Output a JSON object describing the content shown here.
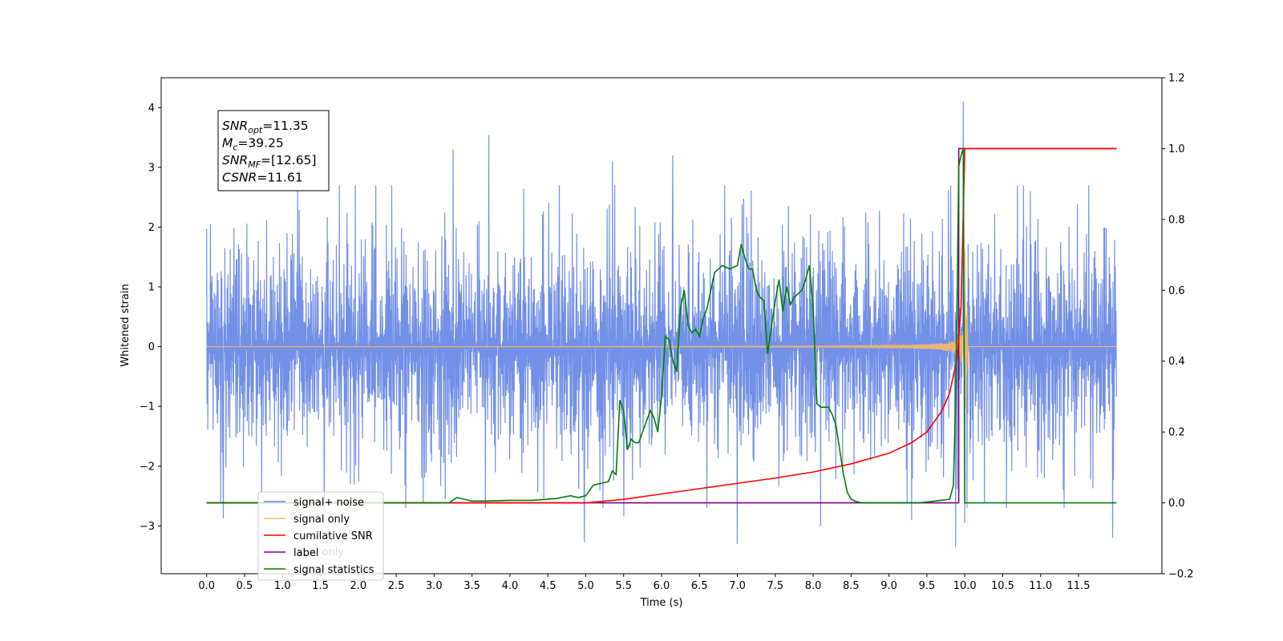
{
  "chart_data": {
    "type": "line",
    "title": "",
    "xlabel": "Time (s)",
    "ylabel_left": "Whitened strain",
    "ylabel_right": "",
    "xlim": [
      -0.6,
      12.6
    ],
    "ylim_left": [
      -3.8,
      4.5
    ],
    "ylim_right": [
      -0.2,
      1.2
    ],
    "x_ticks": [
      0.0,
      0.5,
      1.0,
      1.5,
      2.0,
      2.5,
      3.0,
      3.5,
      4.0,
      4.5,
      5.0,
      5.5,
      6.0,
      6.5,
      7.0,
      7.5,
      8.0,
      8.5,
      9.0,
      9.5,
      10.0,
      10.5,
      11.0,
      11.5
    ],
    "x_tick_labels": [
      "0.0",
      "0.5",
      "1.0",
      "1.5",
      "2.0",
      "2.5",
      "3.0",
      "3.5",
      "4.0",
      "4.5",
      "5.0",
      "5.5",
      "6.0",
      "6.5",
      "7.0",
      "7.5",
      "8.0",
      "8.5",
      "9.0",
      "9.5",
      "10.0",
      "10.5",
      "11.0",
      "11.5"
    ],
    "y_left_ticks": [
      -3,
      -2,
      -1,
      0,
      1,
      2,
      3,
      4
    ],
    "y_left_tick_labels": [
      "−3",
      "−2",
      "−1",
      "0",
      "1",
      "2",
      "3",
      "4"
    ],
    "y_right_ticks": [
      -0.2,
      0.0,
      0.2,
      0.4,
      0.6,
      0.8,
      1.0,
      1.2
    ],
    "y_right_tick_labels": [
      "−0.2",
      "0.0",
      "0.2",
      "0.4",
      "0.6",
      "0.8",
      "1.0",
      "1.2"
    ],
    "grid": false,
    "legend_position": "lower-left",
    "legend": [
      {
        "label": "signal+ noise",
        "color": "#6b8ae6"
      },
      {
        "label": "signal only",
        "color": "#ffbf60"
      },
      {
        "label": "cumilative SNR",
        "color": "#ff0000"
      },
      {
        "label": "label",
        "color": "#800080"
      },
      {
        "label": "signal statistics",
        "color": "#007f00"
      }
    ],
    "hidden_legend_text": "label only",
    "annotation": {
      "lines": [
        {
          "base": "SNR",
          "sub": "opt",
          "rest": "=11.35"
        },
        {
          "base": "M",
          "sub": "c",
          "rest": "=39.25"
        },
        {
          "base": "SNR",
          "sub": "MF",
          "rest": "=[12.65]"
        },
        {
          "base": "CSNR",
          "sub": "",
          "rest": "=11.61"
        }
      ]
    },
    "series": [
      {
        "name": "signal+ noise",
        "axis": "left",
        "color": "#6b8ae6",
        "description_amplitude": 1.0,
        "x_range": [
          0.0,
          12.0
        ],
        "peaks": [
          {
            "x": 0.0,
            "y": 1.97
          },
          {
            "x": 0.22,
            "y": -2.87
          },
          {
            "x": 1.2,
            "y": 2.65
          },
          {
            "x": 1.55,
            "y": -2.7
          },
          {
            "x": 3.25,
            "y": 3.3
          },
          {
            "x": 3.72,
            "y": 3.54
          },
          {
            "x": 4.98,
            "y": -3.27
          },
          {
            "x": 5.35,
            "y": 3.1
          },
          {
            "x": 5.5,
            "y": -2.84
          },
          {
            "x": 6.15,
            "y": 3.2
          },
          {
            "x": 7.0,
            "y": -3.3
          },
          {
            "x": 8.1,
            "y": -3.0
          },
          {
            "x": 9.3,
            "y": -2.9
          },
          {
            "x": 9.88,
            "y": -3.35
          },
          {
            "x": 9.98,
            "y": 4.1
          },
          {
            "x": 10.0,
            "y": -2.95
          },
          {
            "x": 11.95,
            "y": -3.2
          }
        ]
      },
      {
        "name": "signal only",
        "axis": "left",
        "color": "#ffbf60",
        "x_range": [
          0.0,
          12.0
        ],
        "merger_time": 10.0
      },
      {
        "name": "cumilative SNR",
        "axis": "right",
        "color": "#ff0000",
        "x": [
          5.0,
          5.5,
          6.0,
          6.5,
          7.0,
          7.5,
          8.0,
          8.5,
          9.0,
          9.3,
          9.5,
          9.7,
          9.8,
          9.9,
          9.95,
          10.0,
          10.05,
          12.0
        ],
        "values": [
          0.0,
          0.01,
          0.025,
          0.04,
          0.055,
          0.07,
          0.087,
          0.11,
          0.14,
          0.17,
          0.2,
          0.26,
          0.31,
          0.41,
          0.55,
          1.0,
          1.0,
          1.0
        ]
      },
      {
        "name": "label",
        "axis": "right",
        "color": "#800080",
        "x": [
          0.0,
          9.92,
          9.92,
          10.0,
          10.0,
          12.0
        ],
        "values": [
          0.0,
          0.0,
          1.0,
          1.0,
          1.0,
          1.0
        ]
      },
      {
        "name": "signal statistics",
        "axis": "right",
        "color": "#007f00",
        "x": [
          0.0,
          3.0,
          3.2,
          3.3,
          3.5,
          3.7,
          4.0,
          4.3,
          4.6,
          4.8,
          4.9,
          5.0,
          5.1,
          5.2,
          5.3,
          5.35,
          5.4,
          5.45,
          5.5,
          5.55,
          5.6,
          5.65,
          5.7,
          5.75,
          5.8,
          5.85,
          5.9,
          5.95,
          6.0,
          6.05,
          6.1,
          6.15,
          6.2,
          6.25,
          6.3,
          6.35,
          6.4,
          6.45,
          6.5,
          6.55,
          6.6,
          6.65,
          6.7,
          6.8,
          6.9,
          7.0,
          7.05,
          7.1,
          7.15,
          7.2,
          7.25,
          7.3,
          7.35,
          7.4,
          7.45,
          7.5,
          7.55,
          7.6,
          7.65,
          7.7,
          7.75,
          7.8,
          7.85,
          7.9,
          7.95,
          8.0,
          8.05,
          8.1,
          8.15,
          8.2,
          8.25,
          8.3,
          8.35,
          8.4,
          8.45,
          8.5,
          8.55,
          8.6,
          8.65,
          8.7,
          8.8,
          9.0,
          9.4,
          9.8,
          9.85,
          9.88,
          9.9,
          9.92,
          9.95,
          9.98,
          10.0,
          10.02,
          10.05,
          12.0
        ],
        "values": [
          0.0,
          0.0,
          0.0,
          0.015,
          0.005,
          0.005,
          0.007,
          0.007,
          0.012,
          0.02,
          0.015,
          0.02,
          0.05,
          0.055,
          0.06,
          0.09,
          0.08,
          0.29,
          0.26,
          0.15,
          0.18,
          0.17,
          0.17,
          0.2,
          0.23,
          0.26,
          0.24,
          0.2,
          0.3,
          0.47,
          0.46,
          0.4,
          0.37,
          0.55,
          0.6,
          0.5,
          0.48,
          0.49,
          0.47,
          0.52,
          0.55,
          0.6,
          0.65,
          0.67,
          0.66,
          0.67,
          0.73,
          0.69,
          0.66,
          0.66,
          0.6,
          0.58,
          0.57,
          0.42,
          0.5,
          0.57,
          0.63,
          0.54,
          0.61,
          0.56,
          0.58,
          0.59,
          0.6,
          0.63,
          0.67,
          0.55,
          0.28,
          0.27,
          0.27,
          0.27,
          0.25,
          0.22,
          0.15,
          0.08,
          0.03,
          0.01,
          0.005,
          0.002,
          0.0,
          0.0,
          0.0,
          0.0,
          0.0,
          0.01,
          0.05,
          0.3,
          0.6,
          0.95,
          0.98,
          1.0,
          0.0,
          0.0,
          0.0,
          0.0
        ]
      }
    ]
  }
}
